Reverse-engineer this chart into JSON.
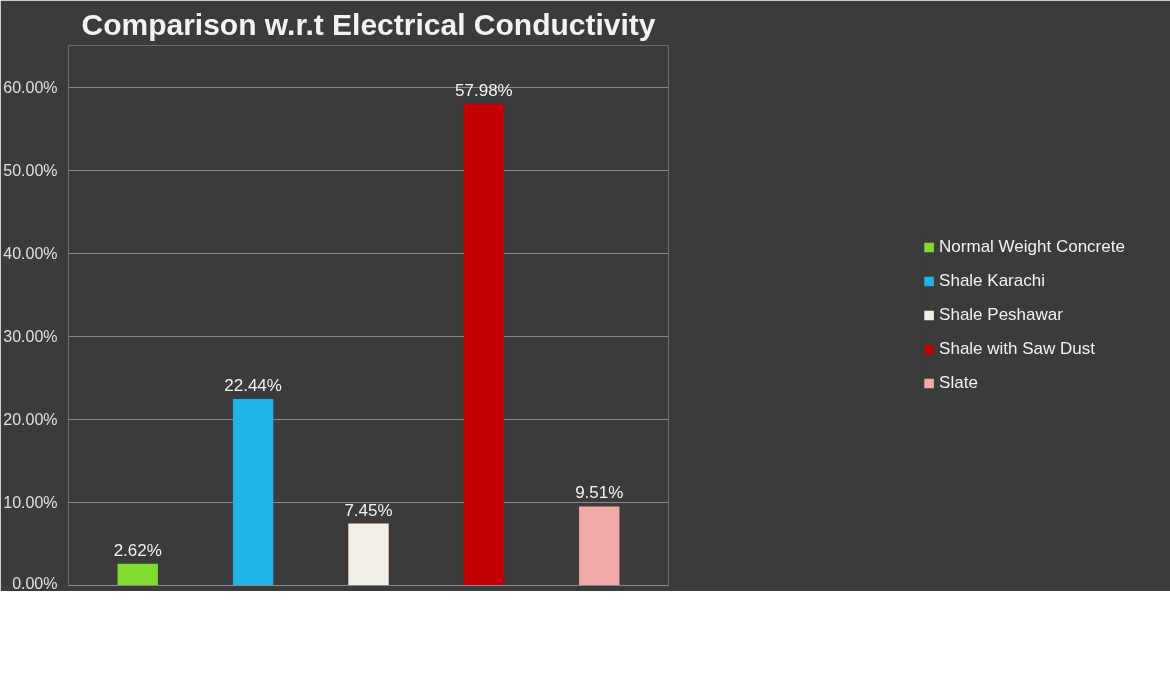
{
  "chart_data": {
    "type": "bar",
    "title": "Comparison w.r.t Electrical Conductivity",
    "categories": [
      null,
      null,
      null,
      null,
      null
    ],
    "series": [
      {
        "name": "Normal Weight Concrete",
        "color": "#7fdb2e",
        "values": [
          2.62,
          null,
          null,
          null,
          null
        ],
        "value_labels": [
          "2.62%",
          null,
          null,
          null,
          null
        ]
      },
      {
        "name": "Shale Karachi",
        "color": "#1fb4e8",
        "values": [
          null,
          22.44,
          null,
          null,
          null
        ],
        "value_labels": [
          null,
          "22.44%",
          null,
          null,
          null
        ]
      },
      {
        "name": "Shale Peshawar",
        "color": "#f2eee6",
        "values": [
          null,
          null,
          7.45,
          null,
          null
        ],
        "value_labels": [
          null,
          null,
          "7.45%",
          null,
          null
        ]
      },
      {
        "name": "Shale with Saw Dust",
        "color": "#c00000",
        "values": [
          null,
          null,
          null,
          57.98,
          null
        ],
        "value_labels": [
          null,
          null,
          null,
          "57.98%",
          null
        ]
      },
      {
        "name": "Slate",
        "color": "#f0aaa8",
        "values": [
          null,
          null,
          null,
          null,
          9.51
        ],
        "value_labels": [
          null,
          null,
          null,
          null,
          "9.51%"
        ]
      }
    ],
    "ylim": [
      0,
      65
    ],
    "yticks": [
      {
        "value": 0,
        "label": "0.00%"
      },
      {
        "value": 10,
        "label": "10.00%"
      },
      {
        "value": 20,
        "label": "20.00%"
      },
      {
        "value": 30,
        "label": "30.00%"
      },
      {
        "value": 40,
        "label": "40.00%"
      },
      {
        "value": 50,
        "label": "50.00%"
      },
      {
        "value": 60,
        "label": "60.00%"
      }
    ],
    "grid": "y",
    "legend": "right"
  }
}
